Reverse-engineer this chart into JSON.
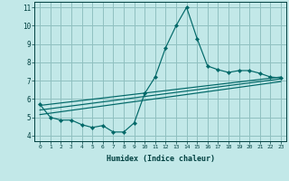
{
  "title": "",
  "xlabel": "Humidex (Indice chaleur)",
  "ylabel": "",
  "bg_color": "#c2e8e8",
  "grid_color": "#90c0c0",
  "line_color": "#006868",
  "xlim": [
    -0.5,
    23.5
  ],
  "ylim": [
    3.7,
    11.3
  ],
  "xticks": [
    0,
    1,
    2,
    3,
    4,
    5,
    6,
    7,
    8,
    9,
    10,
    11,
    12,
    13,
    14,
    15,
    16,
    17,
    18,
    19,
    20,
    21,
    22,
    23
  ],
  "yticks": [
    4,
    5,
    6,
    7,
    8,
    9,
    10,
    11
  ],
  "main_x": [
    0,
    1,
    2,
    3,
    4,
    5,
    6,
    7,
    8,
    9,
    10,
    11,
    12,
    13,
    14,
    15,
    16,
    17,
    18,
    19,
    20,
    21,
    22,
    23
  ],
  "main_y": [
    5.7,
    5.0,
    4.85,
    4.85,
    4.6,
    4.45,
    4.55,
    4.2,
    4.2,
    4.7,
    6.3,
    7.2,
    8.8,
    10.0,
    11.0,
    9.3,
    7.8,
    7.6,
    7.45,
    7.55,
    7.55,
    7.4,
    7.2,
    7.15
  ],
  "line2_x": [
    0,
    23
  ],
  "line2_y": [
    5.4,
    7.1
  ],
  "line3_x": [
    0,
    23
  ],
  "line3_y": [
    5.15,
    6.95
  ],
  "line4_x": [
    0,
    23
  ],
  "line4_y": [
    5.65,
    7.2
  ]
}
